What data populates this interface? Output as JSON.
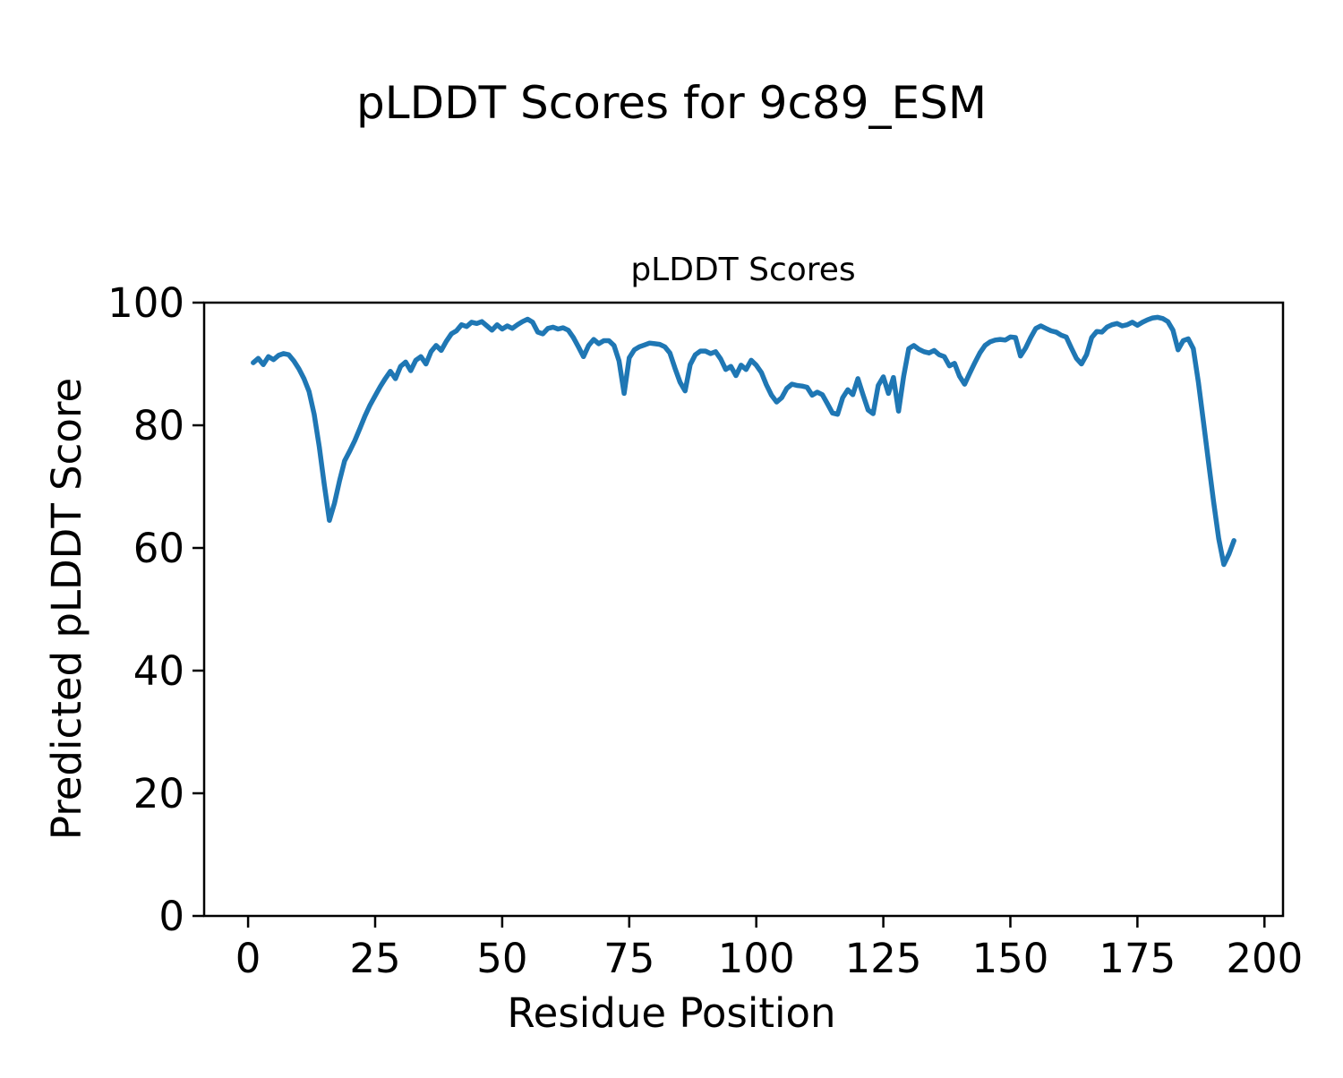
{
  "figure": {
    "suptitle": "pLDDT Scores for 9c89_ESM",
    "background": "#ffffff"
  },
  "chart_data": {
    "type": "line",
    "title": "pLDDT Scores",
    "xlabel": "Residue Position",
    "ylabel": "Predicted pLDDT Score",
    "legend": "none",
    "grid": false,
    "line_color": "#1f77b4",
    "line_width": 5.5,
    "axis_color": "#000000",
    "xlim": [
      -8.65,
      203.65
    ],
    "ylim": [
      0,
      100
    ],
    "xticks": [
      0,
      25,
      50,
      75,
      100,
      125,
      150,
      175,
      200
    ],
    "yticks": [
      0,
      20,
      40,
      60,
      80,
      100
    ],
    "x_start": 1,
    "x_step": 1,
    "values": [
      90.2,
      90.9,
      89.9,
      91.2,
      90.7,
      91.4,
      91.7,
      91.5,
      90.5,
      89.2,
      87.6,
      85.5,
      81.8,
      76.5,
      70.3,
      64.5,
      67.3,
      71.0,
      74.2,
      75.8,
      77.5,
      79.5,
      81.5,
      83.3,
      84.8,
      86.3,
      87.6,
      88.8,
      87.6,
      89.6,
      90.3,
      88.9,
      90.6,
      91.2,
      90.0,
      92.0,
      93.0,
      92.2,
      93.7,
      94.9,
      95.4,
      96.4,
      96.1,
      96.8,
      96.6,
      96.9,
      96.2,
      95.5,
      96.4,
      95.7,
      96.2,
      95.8,
      96.4,
      96.9,
      97.3,
      96.8,
      95.2,
      94.9,
      95.8,
      96.0,
      95.7,
      95.9,
      95.5,
      94.3,
      92.8,
      91.2,
      93.0,
      94.0,
      93.3,
      93.8,
      93.8,
      93.0,
      90.5,
      85.2,
      91.0,
      92.3,
      92.8,
      93.1,
      93.4,
      93.3,
      93.2,
      92.8,
      91.8,
      89.3,
      87.0,
      85.6,
      89.9,
      91.5,
      92.1,
      92.1,
      91.7,
      92.0,
      90.8,
      89.1,
      89.6,
      88.1,
      89.8,
      89.1,
      90.6,
      89.8,
      88.6,
      86.6,
      84.9,
      83.8,
      84.5,
      86.0,
      86.7,
      86.5,
      86.4,
      86.2,
      84.9,
      85.4,
      85.0,
      83.5,
      82.0,
      81.8,
      84.5,
      85.8,
      85.0,
      87.6,
      85.0,
      82.5,
      81.9,
      86.5,
      87.9,
      85.2,
      87.8,
      82.3,
      88.0,
      92.5,
      93.0,
      92.4,
      92.0,
      91.8,
      92.2,
      91.5,
      91.2,
      89.7,
      90.1,
      88.0,
      86.7,
      88.5,
      90.2,
      91.8,
      93.0,
      93.6,
      93.9,
      94.0,
      93.9,
      94.4,
      94.3,
      91.3,
      92.6,
      94.3,
      95.8,
      96.2,
      95.8,
      95.4,
      95.2,
      94.7,
      94.4,
      92.6,
      90.9,
      90.0,
      91.5,
      94.3,
      95.3,
      95.2,
      96.0,
      96.4,
      96.6,
      96.2,
      96.4,
      96.8,
      96.3,
      96.8,
      97.2,
      97.5,
      97.6,
      97.4,
      96.9,
      95.5,
      92.3,
      93.8,
      94.1,
      92.5,
      87.0,
      80.5,
      74.0,
      67.5,
      61.5,
      57.3,
      59.0,
      61.2
    ]
  }
}
